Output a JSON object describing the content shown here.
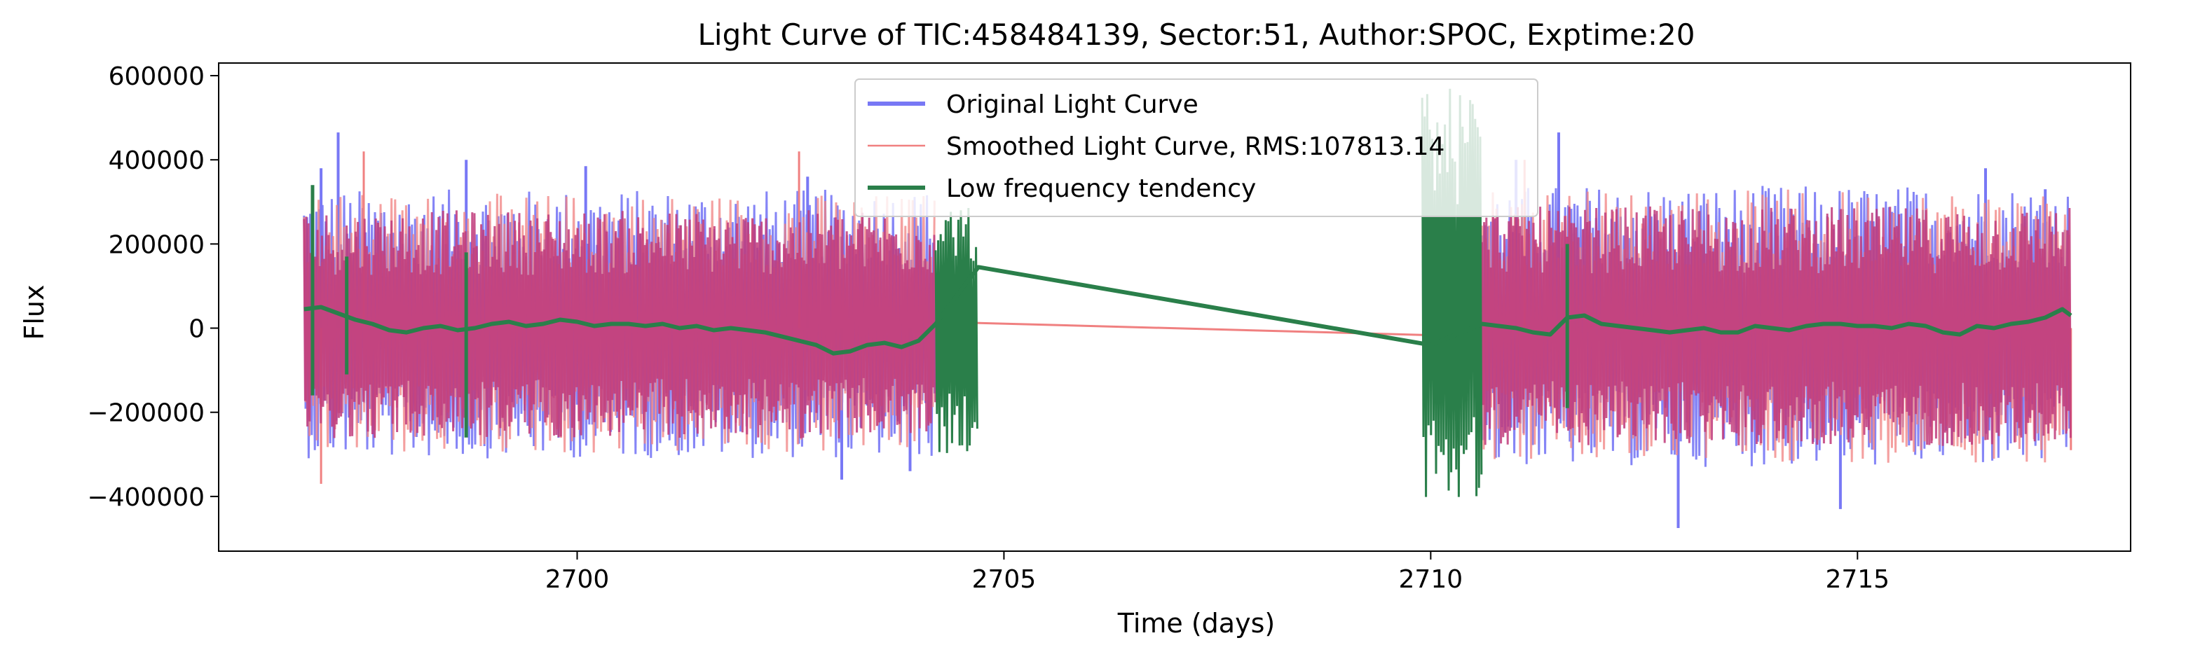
{
  "chart_data": {
    "type": "line",
    "title": "Light Curve of TIC:458484139, Sector:51, Author:SPOC, Exptime:20",
    "xlabel": "Time (days)",
    "ylabel": "Flux",
    "xlim": [
      2695.8,
      2718.2
    ],
    "ylim": [
      -530000,
      630000
    ],
    "x_ticks": [
      {
        "value": 2700,
        "label": "2700"
      },
      {
        "value": 2705,
        "label": "2705"
      },
      {
        "value": 2710,
        "label": "2710"
      },
      {
        "value": 2715,
        "label": "2715"
      }
    ],
    "y_ticks": [
      {
        "value": 600000,
        "label": "600000"
      },
      {
        "value": 400000,
        "label": "400000"
      },
      {
        "value": 200000,
        "label": "200000"
      },
      {
        "value": 0,
        "label": "0"
      },
      {
        "value": -200000,
        "label": "−200000"
      },
      {
        "value": -400000,
        "label": "−400000"
      }
    ],
    "grid": false,
    "legend_position": "top-center",
    "series": [
      {
        "name": "Original Light Curve",
        "color": "#7878f5",
        "segments": [
          {
            "x_start": 2696.8,
            "x_end": 2704.2,
            "noise_low": -310000,
            "noise_high": 330000,
            "peaks_x": [
              2697.0,
              2697.2,
              2698.7,
              2700.1,
              2702.7,
              2703.1,
              2703.9
            ],
            "peaks_y": [
              380000,
              465000,
              400000,
              385000,
              360000,
              -360000,
              -340000
            ]
          },
          {
            "x_start": 2710.6,
            "x_end": 2717.5,
            "noise_low": -330000,
            "noise_high": 340000,
            "peaks_x": [
              2711.0,
              2711.5,
              2712.9,
              2714.8,
              2716.5,
              2717.2
            ],
            "peaks_y": [
              400000,
              465000,
              -475000,
              -430000,
              380000,
              330000
            ]
          }
        ]
      },
      {
        "name": "Smoothed Light Curve, RMS:107813.14",
        "color": "#f08080",
        "points": [
          [
            2704.2,
            15000
          ],
          [
            2710.6,
            -20000
          ]
        ],
        "segments": [
          {
            "x_start": 2696.8,
            "x_end": 2704.2,
            "noise_low": -300000,
            "noise_high": 320000,
            "peaks_x": [
              2697.0,
              2697.5,
              2702.6
            ],
            "peaks_y": [
              -370000,
              420000,
              420000
            ]
          },
          {
            "x_start": 2710.6,
            "x_end": 2717.5,
            "noise_low": -320000,
            "noise_high": 330000,
            "peaks_x": [
              2711.1,
              2717.5
            ],
            "peaks_y": [
              400000,
              -290000
            ]
          }
        ]
      },
      {
        "name": "Low frequency tendency",
        "color": "#2a7f4a",
        "points": [
          [
            2696.8,
            45000
          ],
          [
            2697.0,
            50000
          ],
          [
            2697.2,
            35000
          ],
          [
            2697.4,
            20000
          ],
          [
            2697.6,
            10000
          ],
          [
            2697.8,
            -5000
          ],
          [
            2698.0,
            -10000
          ],
          [
            2698.2,
            0
          ],
          [
            2698.4,
            5000
          ],
          [
            2698.6,
            -5000
          ],
          [
            2698.8,
            0
          ],
          [
            2699.0,
            10000
          ],
          [
            2699.2,
            15000
          ],
          [
            2699.4,
            5000
          ],
          [
            2699.6,
            10000
          ],
          [
            2699.8,
            20000
          ],
          [
            2700.0,
            15000
          ],
          [
            2700.2,
            5000
          ],
          [
            2700.4,
            10000
          ],
          [
            2700.6,
            10000
          ],
          [
            2700.8,
            5000
          ],
          [
            2701.0,
            10000
          ],
          [
            2701.2,
            0
          ],
          [
            2701.4,
            5000
          ],
          [
            2701.6,
            -5000
          ],
          [
            2701.8,
            0
          ],
          [
            2702.0,
            -5000
          ],
          [
            2702.2,
            -10000
          ],
          [
            2702.4,
            -20000
          ],
          [
            2702.6,
            -30000
          ],
          [
            2702.8,
            -40000
          ],
          [
            2703.0,
            -60000
          ],
          [
            2703.2,
            -55000
          ],
          [
            2703.4,
            -40000
          ],
          [
            2703.6,
            -35000
          ],
          [
            2703.8,
            -45000
          ],
          [
            2704.0,
            -30000
          ],
          [
            2704.2,
            10000
          ],
          [
            2704.7,
            145000
          ],
          [
            2710.0,
            -40000
          ],
          [
            2710.6,
            10000
          ],
          [
            2710.8,
            5000
          ],
          [
            2711.0,
            0
          ],
          [
            2711.2,
            -10000
          ],
          [
            2711.4,
            -15000
          ],
          [
            2711.6,
            25000
          ],
          [
            2711.8,
            30000
          ],
          [
            2712.0,
            10000
          ],
          [
            2712.2,
            5000
          ],
          [
            2712.4,
            0
          ],
          [
            2712.6,
            -5000
          ],
          [
            2712.8,
            -10000
          ],
          [
            2713.0,
            -5000
          ],
          [
            2713.2,
            0
          ],
          [
            2713.4,
            -10000
          ],
          [
            2713.6,
            -10000
          ],
          [
            2713.8,
            5000
          ],
          [
            2714.0,
            0
          ],
          [
            2714.2,
            -5000
          ],
          [
            2714.4,
            5000
          ],
          [
            2714.6,
            10000
          ],
          [
            2714.8,
            10000
          ],
          [
            2715.0,
            5000
          ],
          [
            2715.2,
            5000
          ],
          [
            2715.4,
            0
          ],
          [
            2715.6,
            10000
          ],
          [
            2715.8,
            5000
          ],
          [
            2716.0,
            -10000
          ],
          [
            2716.2,
            -15000
          ],
          [
            2716.4,
            5000
          ],
          [
            2716.6,
            0
          ],
          [
            2716.8,
            10000
          ],
          [
            2717.0,
            15000
          ],
          [
            2717.2,
            25000
          ],
          [
            2717.4,
            45000
          ],
          [
            2717.5,
            30000
          ]
        ],
        "bursts": [
          {
            "x_start": 2704.2,
            "x_end": 2704.7,
            "low": -300000,
            "high": 290000
          },
          {
            "x_start": 2709.9,
            "x_end": 2710.6,
            "low": -410000,
            "high": 580000
          }
        ],
        "spikes": [
          {
            "x": 2696.9,
            "low": -160000,
            "high": 340000
          },
          {
            "x": 2697.3,
            "low": -110000,
            "high": 170000
          },
          {
            "x": 2698.7,
            "low": -260000,
            "high": 180000
          },
          {
            "x": 2711.6,
            "low": -190000,
            "high": 200000
          }
        ]
      }
    ]
  }
}
